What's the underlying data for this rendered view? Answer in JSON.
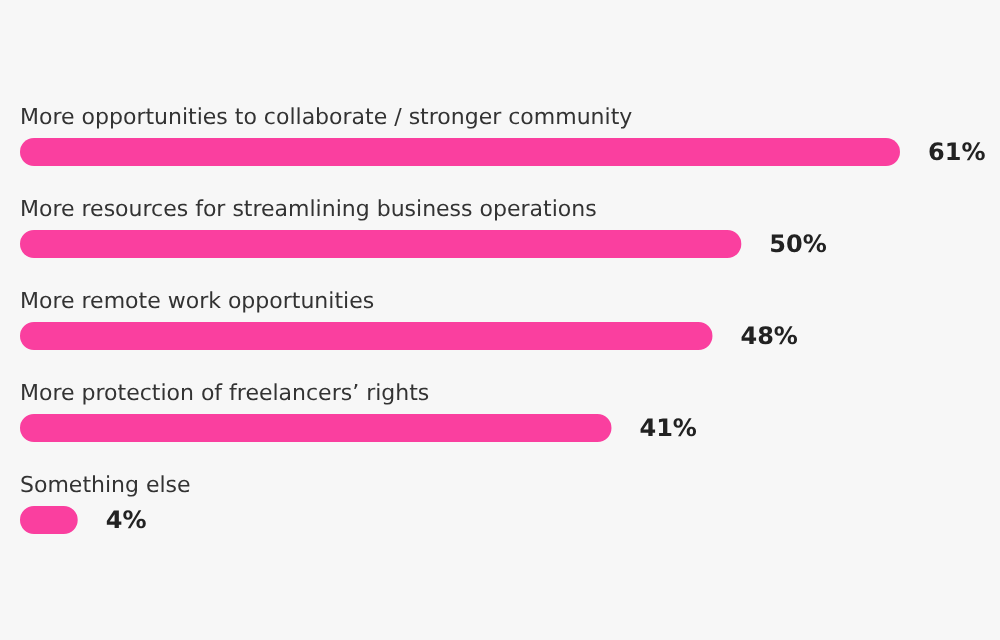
{
  "chart_data": {
    "type": "bar",
    "orientation": "horizontal",
    "relative": false,
    "categories": [
      "More opportunities to collaborate / stronger community",
      "More resources for streamlining business operations",
      "More remote work opportunities",
      "More protection of freelancers’ rights",
      "Something else"
    ],
    "values": [
      61,
      50,
      48,
      41,
      4
    ],
    "value_labels": [
      "61%",
      "50%",
      "48%",
      "41%",
      "4%"
    ],
    "color": "#fa3f9f"
  }
}
